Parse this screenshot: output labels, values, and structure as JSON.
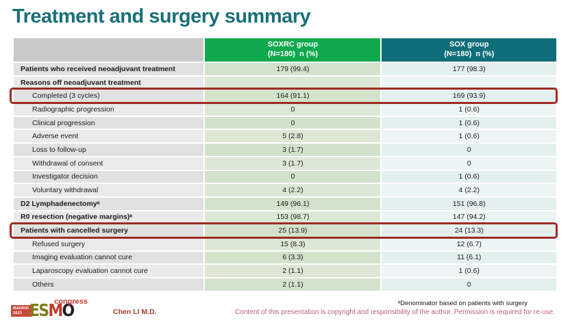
{
  "title": "Treatment and surgery summary",
  "colors": {
    "title_teal": "#1a6f78",
    "soxrc_header_green": "#10a94d",
    "sox_header_teal": "#0f6e79",
    "highlight_box_red": "#9e2a23"
  },
  "table": {
    "columns": [
      {
        "line1": "SOXRC group",
        "line2": "(N=180)  n (%)"
      },
      {
        "line1": "SOX group",
        "line2": "(N=180)  n (%)"
      }
    ],
    "rows": [
      {
        "label": "Patients who received neoadjuvant treatment",
        "bold": true,
        "highlight": false,
        "soxrc": "179 (99.4)",
        "sox": "177 (98.3)"
      },
      {
        "label": "Reasons off neoadjuvant treatment",
        "bold": true,
        "highlight": false,
        "soxrc": "",
        "sox": ""
      },
      {
        "label": "Completed (3 cycles)",
        "bold": false,
        "highlight": true,
        "soxrc": "164 (91.1)",
        "sox": "169 (93.9)"
      },
      {
        "label": "Radiographic progression",
        "bold": false,
        "highlight": false,
        "soxrc": "0",
        "sox": "1 (0.6)"
      },
      {
        "label": "Clinical progression",
        "bold": false,
        "highlight": false,
        "soxrc": "0",
        "sox": "1 (0.6)"
      },
      {
        "label": "Adverse event",
        "bold": false,
        "highlight": false,
        "soxrc": "5 (2.8)",
        "sox": "1 (0.6)"
      },
      {
        "label": "Loss to follow-up",
        "bold": false,
        "highlight": false,
        "soxrc": "3 (1.7)",
        "sox": "0"
      },
      {
        "label": "Withdrawal of consent",
        "bold": false,
        "highlight": false,
        "soxrc": "3 (1.7)",
        "sox": "0"
      },
      {
        "label": "Investigator decision",
        "bold": false,
        "highlight": false,
        "soxrc": "0",
        "sox": "1 (0.6)"
      },
      {
        "label": "Voluntary withdrawal",
        "bold": false,
        "highlight": false,
        "soxrc": "4 (2.2)",
        "sox": "4 (2.2)"
      },
      {
        "label": "D2 Lymphadenectomyᵃ",
        "bold": true,
        "highlight": false,
        "soxrc": "149 (96.1)",
        "sox": "151 (96.8)"
      },
      {
        "label": "R0 resection (negative margins)ᵃ",
        "bold": true,
        "highlight": false,
        "soxrc": "153 (98.7)",
        "sox": "147 (94.2)"
      },
      {
        "label": "Patients with cancelled surgery",
        "bold": true,
        "highlight": true,
        "soxrc": "25 (13.9)",
        "sox": "24 (13.3)"
      },
      {
        "label": "Refused surgery",
        "bold": false,
        "highlight": false,
        "soxrc": "15 (8.3)",
        "sox": "12 (6.7)"
      },
      {
        "label": "Imaging evaluation cannot cure",
        "bold": false,
        "highlight": false,
        "soxrc": "6 (3.3)",
        "sox": "11 (6.1)"
      },
      {
        "label": "Laparoscopy evaluation cannot cure",
        "bold": false,
        "highlight": false,
        "soxrc": "2 (1.1)",
        "sox": "1 (0.6)"
      },
      {
        "label": "Others",
        "bold": false,
        "highlight": false,
        "soxrc": "2 (1.1)",
        "sox": "0"
      }
    ]
  },
  "footer": {
    "logo": {
      "city": "MADRID",
      "year": "2023",
      "letters": [
        "E",
        "S",
        "M",
        "O"
      ],
      "congress": "congress"
    },
    "presenter": "Chen LI M.D.",
    "footnote": "ᵃDenominator based on patients with surgery",
    "copyright": "Content of this presentation is copyright and responsibility of the author. Permission is required for re-use."
  }
}
